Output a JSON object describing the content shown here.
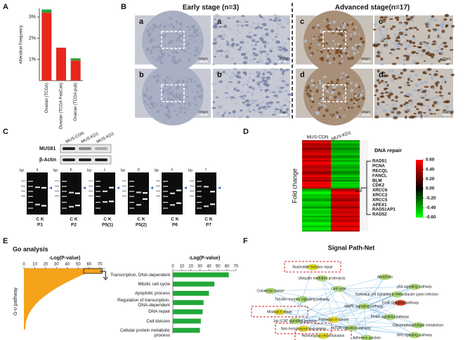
{
  "panel_labels": [
    "A",
    "B",
    "C",
    "D",
    "E",
    "F"
  ],
  "A": {
    "ylabel": "Alteration Frequency",
    "categories": [
      "Ovarian (TCGA)",
      "Ovarian (TCGA PanCan)",
      "Ovarian (TCGA pub)"
    ],
    "series": [
      {
        "color": "#e8261c",
        "values": [
          3.2,
          1.55,
          0.95
        ]
      },
      {
        "color": "#27a33a",
        "values": [
          0.15,
          0,
          0.1
        ]
      }
    ],
    "ylim": [
      0,
      3.4
    ],
    "yticks": [
      {
        "value": 1,
        "label": "1%"
      },
      {
        "value": 2,
        "label": "2%"
      },
      {
        "value": 3,
        "label": "3%"
      }
    ]
  },
  "B": {
    "titles": [
      "Early stage (n=3)",
      "Advanced stage(n=17)"
    ],
    "tiles": [
      {
        "letter": "a",
        "scale": "100μm"
      },
      {
        "letter": "a",
        "scale": "20μm"
      },
      {
        "letter": "c",
        "scale": "100μm"
      },
      {
        "letter": "c",
        "scale": "20μm"
      },
      {
        "letter": "b",
        "scale": "100μm"
      },
      {
        "letter": "b",
        "scale": "20μm"
      },
      {
        "letter": "d",
        "scale": "100μm"
      },
      {
        "letter": "d",
        "scale": "20μm"
      }
    ]
  },
  "C": {
    "lanes": [
      "MUS-CON",
      "MUS-KD1",
      "MUS-KD2"
    ],
    "blots": [
      "MUS81",
      "β-Actin"
    ],
    "bp": "bp",
    "ck": "C K",
    "gels": [
      {
        "letter": "a",
        "patient": "P1"
      },
      {
        "letter": "b",
        "patient": "P2"
      },
      {
        "letter": "c",
        "patient": "P5(1)"
      },
      {
        "letter": "d",
        "patient": "P5(2)"
      },
      {
        "letter": "e",
        "patient": "P6"
      },
      {
        "letter": "f",
        "patient": "P7"
      }
    ]
  },
  "D": {
    "ylabel": "Fold change",
    "columns": [
      "MUS-CON",
      "MUS-KD1"
    ],
    "group": "DNA repair",
    "genes": [
      "RAD51",
      "PCNA",
      "RECQL",
      "FANCL",
      "BLM",
      "CDK2",
      "XRCC6",
      "XRCC2",
      "XRCC5",
      "APEX1",
      "RAD51AP1",
      "RAD52"
    ],
    "colorbar": {
      "ticks": [
        {
          "value": 0.6,
          "label": "0.60"
        },
        {
          "value": 0.4,
          "label": "0.40"
        },
        {
          "value": 0.2,
          "label": "0.20"
        },
        {
          "value": 0,
          "label": "0.00"
        },
        {
          "value": -0.2,
          "label": "-0.20"
        },
        {
          "value": -0.4,
          "label": "-0.40"
        },
        {
          "value": -0.6,
          "label": "-0.60"
        }
      ]
    }
  },
  "E": {
    "title": "Go analysis",
    "left": {
      "xlabel": "-Log(P-value)",
      "ylabel": "G-o pathway",
      "xlim": [
        0,
        75
      ],
      "xticks": [
        0,
        10,
        20,
        30,
        40,
        50,
        60,
        70
      ]
    },
    "right": {
      "xlabel": "-Log(P-value)",
      "xlim": [
        0,
        70
      ],
      "xticks": [
        0,
        10,
        20,
        30,
        40,
        50,
        60,
        70
      ],
      "color": "#22a83a",
      "categories": [
        "Transcription, DNA-dependent",
        "Mitotic cell cycle",
        "Apoptotic process",
        "Regulation of transcription, DNA-dependent",
        "DNA repair",
        "Cell division",
        "Cellular protein metabolic process"
      ],
      "values": [
        62,
        46,
        40,
        34,
        33,
        31,
        30
      ]
    }
  },
  "F": {
    "title": "Signal Path-Net",
    "nodes": [
      "Nucleotide excision repair",
      "Ubiquitin mediated proteolysis",
      "Colorectal cancer",
      "Cell cycle",
      "Apoptosis",
      "p53 signaling pathway",
      "Toll-like receptor signaling pathway",
      "Epithelial cell signaling in Helicobacter pylori infection",
      "Mismatch repair",
      "MAPK signaling pathway",
      "ErbB signaling pathway",
      "Jak-STAT signaling pathway",
      "Pathways in cancer",
      "PPAR signaling pathway",
      "Non-homologous end-joining",
      "mTOR signaling pathway",
      "Glycerophospholipid metabolism",
      "Wnt signaling pathway",
      "Homologous recombination",
      "Adherens junction"
    ]
  }
}
